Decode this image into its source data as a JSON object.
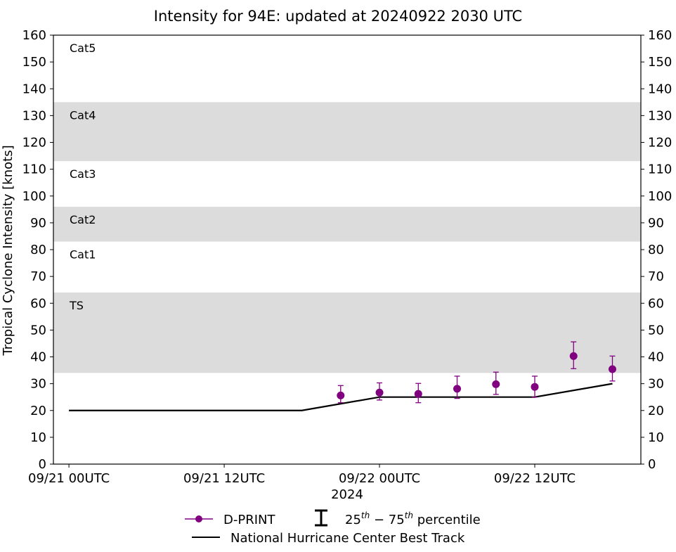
{
  "chart_data": {
    "type": "line",
    "title": "Intensity for 94E: updated at 20240922 2030 UTC",
    "ylabel": "Tropical Cyclone Intensity [knots]",
    "xlabel": "2024",
    "ylim": [
      0,
      160
    ],
    "yticks": [
      0,
      10,
      20,
      30,
      40,
      50,
      60,
      70,
      80,
      90,
      100,
      110,
      120,
      130,
      140,
      150,
      160
    ],
    "xlim_hours": [
      -1.2,
      44.2
    ],
    "xticks": [
      {
        "hour": 0,
        "label": "09/21 00UTC"
      },
      {
        "hour": 12,
        "label": "09/21 12UTC"
      },
      {
        "hour": 24,
        "label": "09/22 00UTC"
      },
      {
        "hour": 36,
        "label": "09/22 12UTC"
      }
    ],
    "category_bands": [
      {
        "label": "TS",
        "from": 34,
        "to": 64,
        "shaded": true
      },
      {
        "label": "Cat1",
        "from": 64,
        "to": 83,
        "shaded": false
      },
      {
        "label": "Cat2",
        "from": 83,
        "to": 96,
        "shaded": true
      },
      {
        "label": "Cat3",
        "from": 96,
        "to": 113,
        "shaded": false
      },
      {
        "label": "Cat4",
        "from": 113,
        "to": 135,
        "shaded": true
      },
      {
        "label": "Cat5",
        "from": 135,
        "to": 160,
        "shaded": false
      }
    ],
    "band_color": "#dcdcdc",
    "series": [
      {
        "name": "D-PRINT",
        "color": "#800080",
        "points": [
          {
            "hour": 21,
            "value": 25.6,
            "p25": 22.9,
            "p75": 29.3
          },
          {
            "hour": 24,
            "value": 26.7,
            "p25": 23.9,
            "p75": 30.3
          },
          {
            "hour": 27,
            "value": 26.2,
            "p25": 22.9,
            "p75": 30.1
          },
          {
            "hour": 30,
            "value": 28.1,
            "p25": 24.5,
            "p75": 32.8
          },
          {
            "hour": 33,
            "value": 29.8,
            "p25": 26.0,
            "p75": 34.3
          },
          {
            "hour": 36,
            "value": 28.8,
            "p25": 25.0,
            "p75": 32.8
          },
          {
            "hour": 39,
            "value": 40.3,
            "p25": 35.6,
            "p75": 45.6
          },
          {
            "hour": 42,
            "value": 35.4,
            "p25": 31.0,
            "p75": 40.3
          }
        ]
      },
      {
        "name": "National Hurricane Center Best Track",
        "color": "#000000",
        "points": [
          {
            "hour": 0,
            "value": 20
          },
          {
            "hour": 18,
            "value": 20
          },
          {
            "hour": 24,
            "value": 25
          },
          {
            "hour": 36,
            "value": 25
          },
          {
            "hour": 42,
            "value": 30
          }
        ]
      }
    ],
    "legend": {
      "placement": "bottom-center",
      "dprint_label": "D-PRINT",
      "percentile_label_base": "25",
      "percentile_label_sup1": "th",
      "percentile_label_dash": " − 75",
      "percentile_label_sup2": "th",
      "percentile_label_tail": " percentile",
      "best_track_label": "National Hurricane Center Best Track"
    }
  }
}
